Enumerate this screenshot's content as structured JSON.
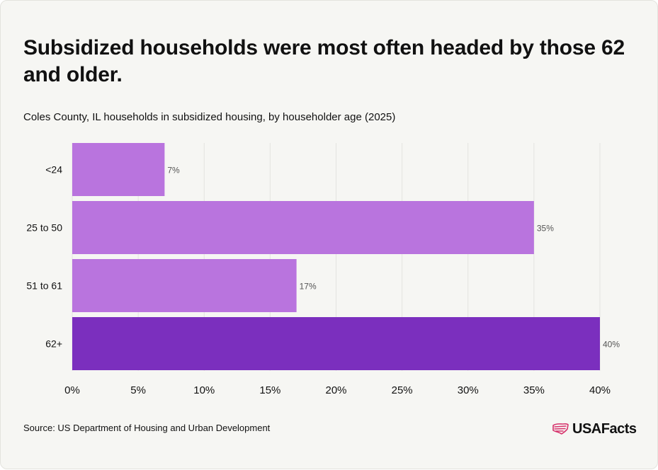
{
  "header": {
    "title": "Subsidized households were most often headed by those 62 and older.",
    "subtitle": "Coles County, IL households in subsidized housing, by householder age (2025)"
  },
  "footer": {
    "source": "Source: US Department of Housing and Urban Development",
    "logo_text": "USAFacts",
    "logo_icon": "us-flag-map-icon"
  },
  "colors": {
    "bar_default": "#b974de",
    "bar_highlight": "#7b2fbe",
    "gridline": "#e4e4e0",
    "label_text": "#555555",
    "logo_accent": "#d6336c"
  },
  "chart_data": {
    "type": "bar",
    "orientation": "horizontal",
    "categories": [
      "<24",
      "25 to 50",
      "51 to 61",
      "62+"
    ],
    "values": [
      7,
      35,
      17,
      40
    ],
    "data_labels": [
      "7%",
      "35%",
      "17%",
      "40%"
    ],
    "highlighted_category": "62+",
    "xlim": [
      0,
      40
    ],
    "xticks": [
      0,
      5,
      10,
      15,
      20,
      25,
      30,
      35,
      40
    ],
    "xtick_labels": [
      "0%",
      "5%",
      "10%",
      "15%",
      "20%",
      "25%",
      "30%",
      "35%",
      "40%"
    ],
    "grid": true,
    "legend": "none",
    "xlabel": "",
    "ylabel": ""
  }
}
